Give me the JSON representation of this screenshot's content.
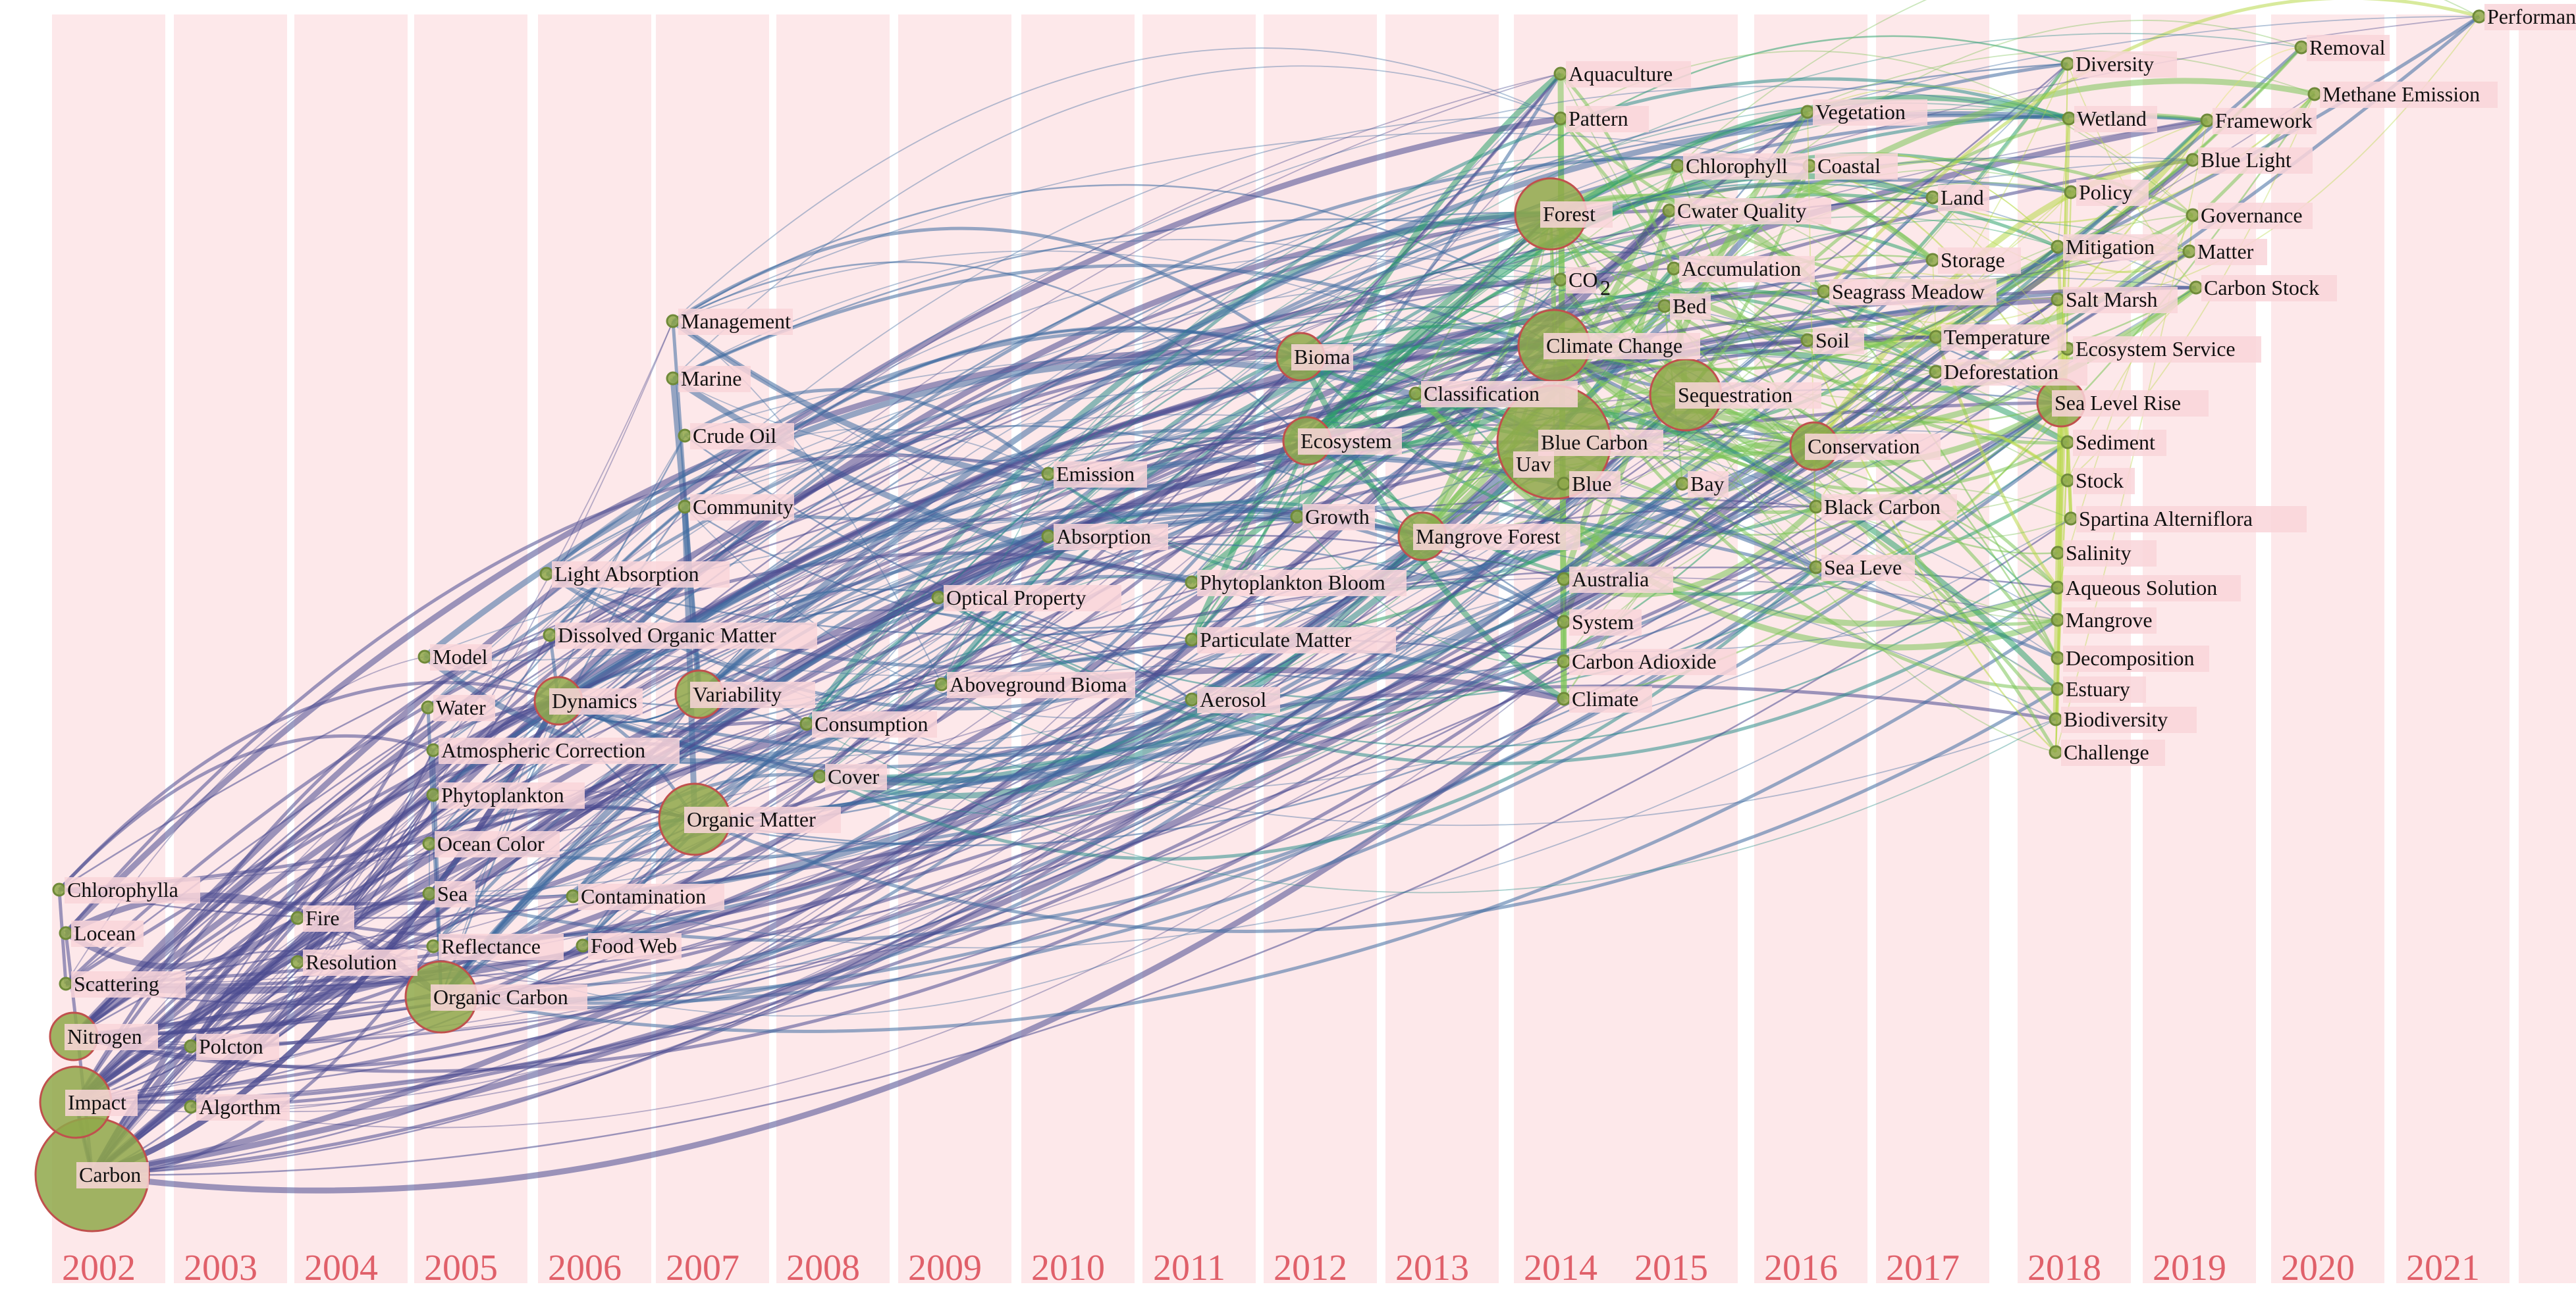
{
  "years": [
    "2002",
    "2003",
    "2004",
    "2005",
    "2006",
    "2007",
    "2008",
    "2009",
    "2010",
    "2011",
    "2012",
    "2013",
    "2014",
    "2015",
    "2016",
    "2017",
    "2018",
    "2019",
    "2020",
    "2021"
  ],
  "colors": {
    "band": "#fde8ea",
    "year_text": "#e0606a",
    "node_fill": "#8fa84a",
    "node_ring": "#c0504d",
    "edge_palette": [
      "#4b4a8f",
      "#3f6ba0",
      "#2e8e8a",
      "#2fa36b",
      "#7cc457",
      "#b8d94a",
      "#d9e35a"
    ]
  },
  "keywords": [
    {
      "label": "Carbon",
      "year": "2002",
      "size": "xl"
    },
    {
      "label": "Impact",
      "year": "2002",
      "size": "l"
    },
    {
      "label": "Nitrogen",
      "year": "2002",
      "size": "m"
    },
    {
      "label": "Scattering",
      "year": "2002",
      "size": "s"
    },
    {
      "label": "Locean",
      "year": "2002",
      "size": "s"
    },
    {
      "label": "Chlorophylla",
      "year": "2002",
      "size": "s"
    },
    {
      "label": "Polcton",
      "year": "2003",
      "size": "s"
    },
    {
      "label": "Algorthm",
      "year": "2003",
      "size": "s"
    },
    {
      "label": "Fire",
      "year": "2004",
      "size": "s"
    },
    {
      "label": "Resolution",
      "year": "2004",
      "size": "s"
    },
    {
      "label": "Model",
      "year": "2005",
      "size": "s"
    },
    {
      "label": "Water",
      "year": "2005",
      "size": "s"
    },
    {
      "label": "Atmospheric Correction",
      "year": "2005",
      "size": "s"
    },
    {
      "label": "Phytoplankton",
      "year": "2005",
      "size": "s"
    },
    {
      "label": "Ocean Color",
      "year": "2005",
      "size": "s"
    },
    {
      "label": "Sea",
      "year": "2005",
      "size": "s"
    },
    {
      "label": "Reflectance",
      "year": "2005",
      "size": "s"
    },
    {
      "label": "Organic Carbon",
      "year": "2005",
      "size": "l"
    },
    {
      "label": "Light Absorption",
      "year": "2006",
      "size": "s"
    },
    {
      "label": "Dissolved Organic Matter",
      "year": "2006",
      "size": "s"
    },
    {
      "label": "Dynamics",
      "year": "2006",
      "size": "m"
    },
    {
      "label": "Contamination",
      "year": "2006",
      "size": "s"
    },
    {
      "label": "Food Web",
      "year": "2006",
      "size": "s"
    },
    {
      "label": "Management",
      "year": "2007",
      "size": "s"
    },
    {
      "label": "Marine",
      "year": "2007",
      "size": "s"
    },
    {
      "label": "Crude Oil",
      "year": "2007",
      "size": "s"
    },
    {
      "label": "Community",
      "year": "2007",
      "size": "s"
    },
    {
      "label": "Variability",
      "year": "2007",
      "size": "m"
    },
    {
      "label": "Organic Matter",
      "year": "2007",
      "size": "l"
    },
    {
      "label": "Consumption",
      "year": "2008",
      "size": "s"
    },
    {
      "label": "Cover",
      "year": "2008",
      "size": "s"
    },
    {
      "label": "Optical Property",
      "year": "2009",
      "size": "s"
    },
    {
      "label": "Aboveground Bioma",
      "year": "2009",
      "size": "s"
    },
    {
      "label": "Emission",
      "year": "2010",
      "size": "s"
    },
    {
      "label": "Absorption",
      "year": "2010",
      "size": "s"
    },
    {
      "label": "Phytoplankton Bloom",
      "year": "2011",
      "size": "s"
    },
    {
      "label": "Particulate Matter",
      "year": "2011",
      "size": "s"
    },
    {
      "label": "Aerosol",
      "year": "2011",
      "size": "s"
    },
    {
      "label": "Bioma",
      "year": "2012",
      "size": "m"
    },
    {
      "label": "Ecosystem",
      "year": "2012",
      "size": "m"
    },
    {
      "label": "Growth",
      "year": "2012",
      "size": "s"
    },
    {
      "label": "Classification",
      "year": "2013",
      "size": "s"
    },
    {
      "label": "Mangrove Forest",
      "year": "2013",
      "size": "m"
    },
    {
      "label": "Aquaculture",
      "year": "2014",
      "size": "s"
    },
    {
      "label": "Pattern",
      "year": "2014",
      "size": "s"
    },
    {
      "label": "Forest",
      "year": "2014",
      "size": "l"
    },
    {
      "label": "CO",
      "year": "2014",
      "size": "s"
    },
    {
      "label": "Climate Change",
      "year": "2014",
      "size": "l"
    },
    {
      "label": "Uav",
      "year": "2014",
      "size": "s"
    },
    {
      "label": "Blue Carbon",
      "year": "2014",
      "size": "xl"
    },
    {
      "label": "Blue",
      "year": "2014",
      "size": "s"
    },
    {
      "label": "Australia",
      "year": "2014",
      "size": "s"
    },
    {
      "label": "System",
      "year": "2014",
      "size": "s"
    },
    {
      "label": "Carbon Adioxide",
      "year": "2014",
      "size": "s"
    },
    {
      "label": "Climate",
      "year": "2014",
      "size": "s"
    },
    {
      "label": "Chlorophyll",
      "year": "2015",
      "size": "s"
    },
    {
      "label": "Cwater Quality",
      "year": "2015",
      "size": "s"
    },
    {
      "label": "Accumulation",
      "year": "2015",
      "size": "s"
    },
    {
      "label": "Bed",
      "year": "2015",
      "size": "s"
    },
    {
      "label": "Sequestration",
      "year": "2015",
      "size": "l"
    },
    {
      "label": "Bay",
      "year": "2015",
      "size": "s"
    },
    {
      "label": "Vegetation",
      "year": "2016",
      "size": "s"
    },
    {
      "label": "Coastal",
      "year": "2016",
      "size": "s"
    },
    {
      "label": "Seagrass Meadow",
      "year": "2016",
      "size": "s"
    },
    {
      "label": "Soil",
      "year": "2016",
      "size": "s"
    },
    {
      "label": "Conservation",
      "year": "2016",
      "size": "m"
    },
    {
      "label": "Black Carbon",
      "year": "2016",
      "size": "s"
    },
    {
      "label": "Sea Leve",
      "year": "2016",
      "size": "s"
    },
    {
      "label": "Land",
      "year": "2017",
      "size": "s"
    },
    {
      "label": "Storage",
      "year": "2017",
      "size": "s"
    },
    {
      "label": "Temperature",
      "year": "2017",
      "size": "s"
    },
    {
      "label": "Deforestation",
      "year": "2017",
      "size": "s"
    },
    {
      "label": "Diversity",
      "year": "2018",
      "size": "s"
    },
    {
      "label": "Wetland",
      "year": "2018",
      "size": "s"
    },
    {
      "label": "Policy",
      "year": "2018",
      "size": "s"
    },
    {
      "label": "Mitigation",
      "year": "2018",
      "size": "s"
    },
    {
      "label": "Salt Marsh",
      "year": "2018",
      "size": "s"
    },
    {
      "label": "Ecosystem Service",
      "year": "2018",
      "size": "s"
    },
    {
      "label": "Sea Level Rise",
      "year": "2018",
      "size": "m"
    },
    {
      "label": "Sediment",
      "year": "2018",
      "size": "s"
    },
    {
      "label": "Stock",
      "year": "2018",
      "size": "s"
    },
    {
      "label": "Spartina Alterniflora",
      "year": "2018",
      "size": "s"
    },
    {
      "label": "Salinity",
      "year": "2018",
      "size": "s"
    },
    {
      "label": "Aqueous Solution",
      "year": "2018",
      "size": "s"
    },
    {
      "label": "Mangrove",
      "year": "2018",
      "size": "s"
    },
    {
      "label": "Decomposition",
      "year": "2018",
      "size": "s"
    },
    {
      "label": "Estuary",
      "year": "2018",
      "size": "s"
    },
    {
      "label": "Biodiversity",
      "year": "2018",
      "size": "s"
    },
    {
      "label": "Challenge",
      "year": "2018",
      "size": "s"
    },
    {
      "label": "Framework",
      "year": "2019",
      "size": "s"
    },
    {
      "label": "Blue Light",
      "year": "2019",
      "size": "s"
    },
    {
      "label": "Governance",
      "year": "2019",
      "size": "s"
    },
    {
      "label": "Matter",
      "year": "2019",
      "size": "s"
    },
    {
      "label": "Carbon Stock",
      "year": "2019",
      "size": "s"
    },
    {
      "label": "Removal",
      "year": "2020",
      "size": "s"
    },
    {
      "label": "Methane Emission",
      "year": "2020",
      "size": "s"
    },
    {
      "label": "Performance",
      "year": "2021",
      "size": "s"
    }
  ]
}
